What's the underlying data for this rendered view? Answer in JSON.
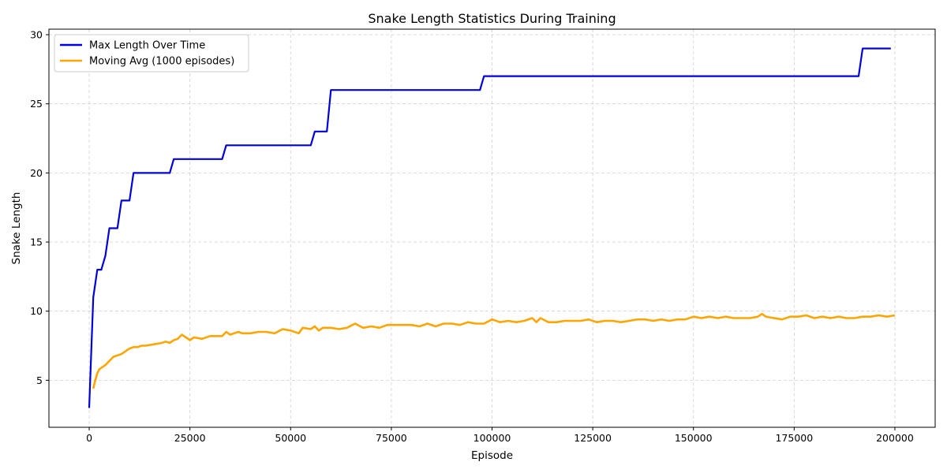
{
  "chart_data": {
    "type": "line",
    "title": "Snake Length Statistics During Training",
    "xlabel": "Episode",
    "ylabel": "Snake Length",
    "xlim": [
      -10000,
      210000
    ],
    "ylim": [
      1.6,
      30.4
    ],
    "xticks": [
      0,
      25000,
      50000,
      75000,
      100000,
      125000,
      150000,
      175000,
      200000
    ],
    "xtick_labels": [
      "0",
      "25000",
      "50000",
      "75000",
      "100000",
      "125000",
      "150000",
      "175000",
      "200000"
    ],
    "yticks": [
      5,
      10,
      15,
      20,
      25,
      30
    ],
    "ytick_labels": [
      "5",
      "10",
      "15",
      "20",
      "25",
      "30"
    ],
    "grid": true,
    "legend_position": "top-left",
    "series": [
      {
        "name": "Max Length Over Time",
        "color": "#0000dd",
        "x": [
          0,
          1000,
          2000,
          3000,
          4000,
          5000,
          6000,
          7000,
          8000,
          10000,
          11000,
          20000,
          21000,
          33000,
          34000,
          55000,
          56000,
          59000,
          60000,
          97000,
          98000,
          191000,
          192000,
          199000
        ],
        "y": [
          3,
          11,
          13,
          13,
          14,
          16,
          16,
          16,
          18,
          18,
          20,
          20,
          21,
          21,
          22,
          22,
          23,
          23,
          26,
          26,
          27,
          27,
          29,
          29
        ]
      },
      {
        "name": "Moving Avg (1000 episodes)",
        "color": "#ffa500",
        "x": [
          1000,
          1500,
          2000,
          2500,
          3000,
          4000,
          5000,
          6000,
          7000,
          8000,
          9000,
          10000,
          11000,
          12000,
          13000,
          14000,
          16000,
          18000,
          19000,
          20000,
          21000,
          22000,
          23000,
          24000,
          25000,
          26000,
          28000,
          30000,
          33000,
          34000,
          35000,
          37000,
          38000,
          40000,
          42000,
          44000,
          46000,
          48000,
          50000,
          52000,
          53000,
          55000,
          56000,
          57000,
          58000,
          60000,
          62000,
          64000,
          66000,
          68000,
          70000,
          72000,
          74000,
          76000,
          78000,
          80000,
          82000,
          84000,
          86000,
          88000,
          90000,
          92000,
          94000,
          96000,
          98000,
          100000,
          102000,
          104000,
          106000,
          108000,
          110000,
          111000,
          112000,
          114000,
          116000,
          118000,
          120000,
          122000,
          124000,
          126000,
          128000,
          130000,
          132000,
          134000,
          136000,
          138000,
          140000,
          142000,
          144000,
          146000,
          148000,
          150000,
          152000,
          154000,
          156000,
          158000,
          160000,
          162000,
          164000,
          166000,
          167000,
          168000,
          170000,
          172000,
          174000,
          176000,
          178000,
          180000,
          182000,
          184000,
          186000,
          188000,
          190000,
          192000,
          194000,
          196000,
          198000,
          200000
        ],
        "y": [
          4.4,
          5.0,
          5.5,
          5.8,
          5.9,
          6.1,
          6.4,
          6.7,
          6.8,
          6.9,
          7.1,
          7.3,
          7.4,
          7.4,
          7.5,
          7.5,
          7.6,
          7.7,
          7.8,
          7.7,
          7.9,
          8.0,
          8.3,
          8.1,
          7.9,
          8.1,
          8.0,
          8.2,
          8.2,
          8.5,
          8.3,
          8.5,
          8.4,
          8.4,
          8.5,
          8.5,
          8.4,
          8.7,
          8.6,
          8.4,
          8.8,
          8.7,
          8.9,
          8.6,
          8.8,
          8.8,
          8.7,
          8.8,
          9.1,
          8.8,
          8.9,
          8.8,
          9.0,
          9.0,
          9.0,
          9.0,
          8.9,
          9.1,
          8.9,
          9.1,
          9.1,
          9.0,
          9.2,
          9.1,
          9.1,
          9.4,
          9.2,
          9.3,
          9.2,
          9.3,
          9.5,
          9.2,
          9.5,
          9.2,
          9.2,
          9.3,
          9.3,
          9.3,
          9.4,
          9.2,
          9.3,
          9.3,
          9.2,
          9.3,
          9.4,
          9.4,
          9.3,
          9.4,
          9.3,
          9.4,
          9.4,
          9.6,
          9.5,
          9.6,
          9.5,
          9.6,
          9.5,
          9.5,
          9.5,
          9.6,
          9.8,
          9.6,
          9.5,
          9.4,
          9.6,
          9.6,
          9.7,
          9.5,
          9.6,
          9.5,
          9.6,
          9.5,
          9.5,
          9.6,
          9.6,
          9.7,
          9.6,
          9.7
        ]
      }
    ]
  }
}
